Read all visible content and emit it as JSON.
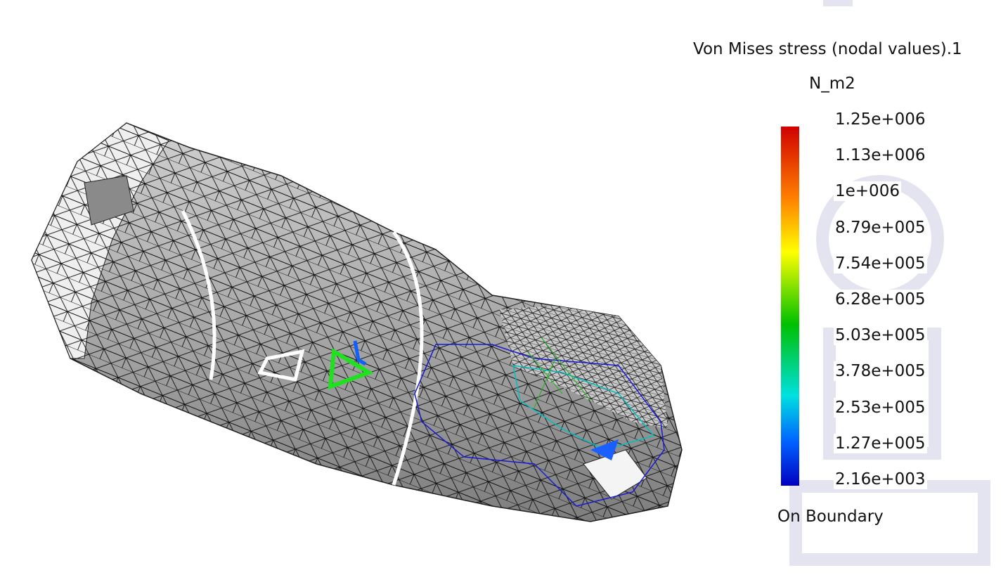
{
  "legend": {
    "title": "Von Mises stress (nodal values).1",
    "unit": "N_m2",
    "labels": [
      "1.25e+006",
      "1.13e+006",
      "1e+006",
      "8.79e+005",
      "7.54e+005",
      "6.28e+005",
      "5.03e+005",
      "3.78e+005",
      "2.53e+005",
      "1.27e+005",
      "2.16e+003"
    ],
    "footer": "On Boundary"
  }
}
